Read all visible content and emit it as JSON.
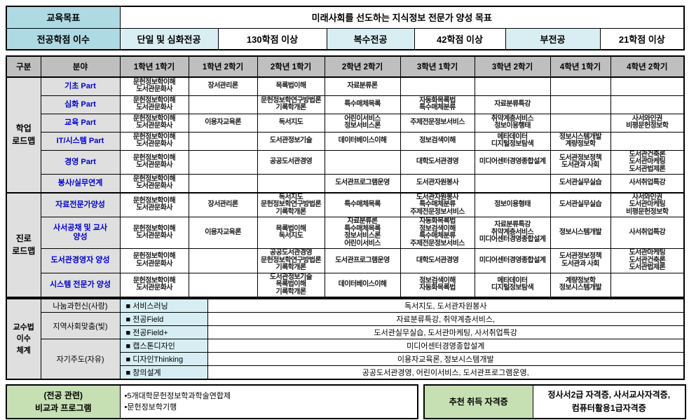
{
  "colors": {
    "header_blue": "#AEDAE4",
    "subheader_blue": "#D9EEF3",
    "header_gray": "#BFBFBF",
    "label_gray": "#DFDFDF",
    "method_cyan": "#D6EEF3",
    "label_green": "#C6E0B4",
    "field_blue": "#0000CC",
    "border_black": "#000000"
  },
  "top": {
    "goal_label": "교육목표",
    "goal_value": "미래사회를 선도하는 지식정보 전문가 양성 목표",
    "credits_label": "전공학점 이수",
    "credit_items": [
      {
        "label": "단일 및 심화전공",
        "value": "130학점 이상"
      },
      {
        "label": "복수전공",
        "value": "42학점 이상"
      },
      {
        "label": "부전공",
        "value": "21학점 이상"
      }
    ]
  },
  "main": {
    "headers": [
      "구분",
      "분야",
      "1학년 1학기",
      "1학년 2학기",
      "2학년 1학기",
      "2학년 2학기",
      "3학년 1학기",
      "3학년 2학기",
      "4학년 1학기",
      "4학년 2학기"
    ],
    "sections": [
      {
        "group": "학업\n로드맵",
        "row_class": "r-academic",
        "rows": [
          {
            "field": "기초 Part",
            "cells": [
              [
                "문헌정보학이해",
                "도서관문화사"
              ],
              [
                "장서관리론"
              ],
              [
                "목록법이해"
              ],
              [
                "자료분류론"
              ],
              [],
              [],
              [],
              []
            ]
          },
          {
            "field": "심화 Part",
            "cells": [
              [
                "문헌정보학이해",
                "도서관문화사"
              ],
              [],
              [
                "문헌정보학연구방법론",
                "기록학개론"
              ],
              [
                "특수매체목록"
              ],
              [
                "자동화목록법",
                "특수매체분류"
              ],
              [
                "자료분류특강"
              ],
              [],
              []
            ]
          },
          {
            "field": "교육 Part",
            "cells": [
              [
                "문헌정보학이해",
                "도서관문화사"
              ],
              [
                "이용자교육론"
              ],
              [
                "독서지도"
              ],
              [
                "어린이서비스",
                "정보서비스론"
              ],
              [
                "주제전문정보서비스"
              ],
              [
                "취약계층서비스",
                "정보이용행태"
              ],
              [],
              [
                "사서와인권",
                "비평문헌정보학"
              ]
            ]
          },
          {
            "field": "IT/시스템 Part",
            "cells": [
              [
                "문헌정보학이해",
                "도서관문화사"
              ],
              [],
              [
                "도서관정보기술"
              ],
              [
                "데이터베이스이해"
              ],
              [
                "정보검색이해"
              ],
              [
                "메타데이터",
                "디지털정보탐색"
              ],
              [
                "정보시스템개발",
                "계량정보학"
              ],
              []
            ]
          },
          {
            "field": "경영 Part",
            "cells": [
              [
                "문헌정보학이해",
                "도서관문화사"
              ],
              [],
              [
                "공공도서관경영"
              ],
              [],
              [
                "대학도서관경영"
              ],
              [
                "미디어센터경영종합설계"
              ],
              [
                "도서관정보정책",
                "도서관과 사회"
              ],
              [
                "도서관건축론",
                "도서관마케팅",
                "도서관법제론"
              ]
            ]
          },
          {
            "field": "봉사/실무연계",
            "cells": [
              [
                "문헌정보학이해",
                "도서관문화사"
              ],
              [],
              [],
              [
                "도서관프로그램운영"
              ],
              [
                "도서관자원봉사"
              ],
              [],
              [
                "도서관실무실습"
              ],
              [
                "사서취업특강"
              ]
            ]
          }
        ]
      },
      {
        "group": "진로\n로드맵",
        "row_class": "r-career",
        "rows": [
          {
            "field": "자료전문가양성",
            "cells": [
              [
                "문헌정보학이해",
                "도서관문화사"
              ],
              [
                "장서관리론"
              ],
              [
                "독서지도",
                "문헌정보학연구방법론",
                "기록학개론"
              ],
              [
                "특수매체목록"
              ],
              [
                "도서관자원봉사",
                "특수매체분류",
                "주제전문정보서비스"
              ],
              [
                "정보이용형태"
              ],
              [
                "도서관실무실습"
              ],
              [
                "사서와인권",
                "도서관마케팅",
                "비평문헌정보학"
              ]
            ]
          },
          {
            "field": "사서공채 및 교사\n양성",
            "cells": [
              [
                "문헌정보학이해",
                "도서관문화사"
              ],
              [
                "이용자교육론"
              ],
              [
                "목록법이해",
                "독서지도"
              ],
              [
                "자료분류론",
                "특수매체목록",
                "정보서비스론",
                "어린이서비스"
              ],
              [
                "자동화목록법",
                "정보검색이해",
                "특수매체분류",
                "주제전문정보서비스"
              ],
              [
                "자료분류특강",
                "취약계층서비스",
                "미디어센터경영종합설계"
              ],
              [
                "정보시스템개발"
              ],
              [
                "사서취업특강"
              ]
            ]
          },
          {
            "field": "도서관경영자 양성",
            "cells": [
              [
                "문헌정보학이해",
                "도서관문화사"
              ],
              [],
              [
                "공공도서관경영",
                "문헌정보학연구방법론",
                "기록학개론"
              ],
              [
                "도서관프로그램운영"
              ],
              [
                "대학도서관경영"
              ],
              [
                "미디어센터경영종합설계"
              ],
              [
                "도서관정보정책",
                "도서관과 사회"
              ],
              [
                "도서관마케팅",
                "도서관건축론",
                "도서관법제론"
              ]
            ]
          },
          {
            "field": "시스템 전문가 양성",
            "cells": [
              [
                "문헌정보학이해",
                "도서관문화사"
              ],
              [],
              [
                "도서관정보기술",
                "목록법이해",
                "기록학개론"
              ],
              [
                "데이터베이스이해"
              ],
              [
                "정보검색이해",
                "자동화목록법"
              ],
              [
                "메타데이터",
                "디지털정보탐색"
              ],
              [
                "계량정보학",
                "정보시스템개발"
              ],
              []
            ]
          }
        ]
      }
    ]
  },
  "pedagogy": {
    "group": "교수법\n이수\n체계",
    "rows": [
      {
        "category": "나눔과헌신(사랑)",
        "cat_span": 1,
        "method": "■ 서비스러닝",
        "content": "독서지도, 도서관자원봉사"
      },
      {
        "category": "지역사회맞춤(빛)",
        "cat_span": 2,
        "method": "■ 전공Field",
        "content": "자료분류특강, 취약계층서비스,"
      },
      {
        "method": "■ 전공Field+",
        "content": "도서관실무실습, 도서관마케팅, 사서취업특강"
      },
      {
        "category": "자기주도(자유)",
        "cat_span": 3,
        "method": "■ 캡스톤디자인",
        "content": "미디어센터경영종합설계"
      },
      {
        "method": "■ 디자인Thinking",
        "content": "이용자교육론, 정보시스템개발"
      },
      {
        "method": "■ 창의설계",
        "content": "공공도서관경영, 어린이서비스, 도서관프로그램운영,"
      }
    ]
  },
  "bottom": {
    "extracurricular_label": "(전공 관련)\n비교과 프로그램",
    "extracurricular_items": "•5개대학문헌정보학과학술연합제\n•문헌정보학기행",
    "license_label": "추천 취득 자격증",
    "license_value": "정사서2급 자격증, 사서교사자격증,\n컴퓨터활용1급자격증"
  }
}
